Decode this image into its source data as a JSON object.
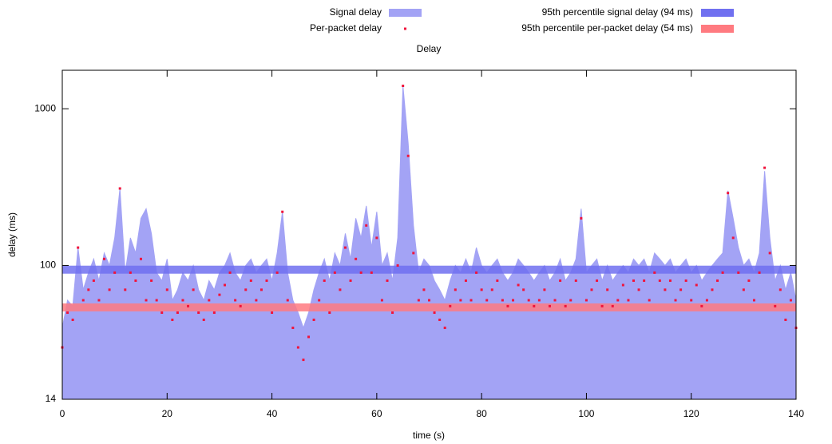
{
  "chart_data": {
    "type": "area-scatter",
    "title": "Delay",
    "x_label": "time (s)",
    "y_label": "delay (ms)",
    "log_y": true,
    "xlim": [
      0,
      140
    ],
    "xticks": [
      0,
      20,
      40,
      60,
      80,
      100,
      120,
      140
    ],
    "ylim": [
      14,
      1760
    ],
    "yticks": [
      14,
      100,
      1000
    ],
    "x": [
      0,
      1,
      2,
      3,
      4,
      5,
      6,
      7,
      8,
      9,
      10,
      11,
      12,
      13,
      14,
      15,
      16,
      17,
      18,
      19,
      20,
      21,
      22,
      23,
      24,
      25,
      26,
      27,
      28,
      29,
      30,
      31,
      32,
      33,
      34,
      35,
      36,
      37,
      38,
      39,
      40,
      41,
      42,
      43,
      44,
      45,
      46,
      47,
      48,
      49,
      50,
      51,
      52,
      53,
      54,
      55,
      56,
      57,
      58,
      59,
      60,
      61,
      62,
      63,
      64,
      65,
      66,
      67,
      68,
      69,
      70,
      71,
      72,
      73,
      74,
      75,
      76,
      77,
      78,
      79,
      80,
      81,
      82,
      83,
      84,
      85,
      86,
      87,
      88,
      89,
      90,
      91,
      92,
      93,
      94,
      95,
      96,
      97,
      98,
      99,
      100,
      101,
      102,
      103,
      104,
      105,
      106,
      107,
      108,
      109,
      110,
      111,
      112,
      113,
      114,
      115,
      116,
      117,
      118,
      119,
      120,
      121,
      122,
      123,
      124,
      125,
      126,
      127,
      128,
      129,
      130,
      131,
      132,
      133,
      134,
      135,
      136,
      137,
      138,
      139,
      140
    ],
    "series": [
      {
        "name": "Signal delay",
        "style": "area",
        "color": "#a3a3f5",
        "values": [
          40,
          60,
          55,
          130,
          70,
          90,
          110,
          80,
          120,
          100,
          150,
          310,
          90,
          150,
          120,
          200,
          230,
          160,
          90,
          80,
          110,
          60,
          70,
          90,
          80,
          100,
          70,
          60,
          80,
          70,
          90,
          100,
          120,
          90,
          80,
          100,
          110,
          90,
          100,
          110,
          80,
          120,
          220,
          90,
          60,
          50,
          40,
          50,
          70,
          90,
          110,
          80,
          120,
          100,
          160,
          110,
          200,
          150,
          240,
          130,
          220,
          100,
          120,
          80,
          150,
          1400,
          600,
          180,
          90,
          110,
          100,
          80,
          70,
          60,
          80,
          100,
          90,
          110,
          90,
          130,
          100,
          90,
          100,
          110,
          90,
          80,
          90,
          110,
          100,
          90,
          80,
          90,
          100,
          80,
          90,
          110,
          80,
          90,
          110,
          230,
          90,
          100,
          110,
          80,
          100,
          80,
          90,
          100,
          90,
          110,
          100,
          110,
          90,
          120,
          110,
          100,
          110,
          90,
          100,
          110,
          90,
          100,
          80,
          90,
          100,
          110,
          120,
          300,
          200,
          130,
          100,
          110,
          90,
          120,
          400,
          150,
          80,
          100,
          70,
          90,
          60
        ]
      },
      {
        "name": "Per-packet delay",
        "style": "dots",
        "color": "#f0143c",
        "values": [
          30,
          50,
          45,
          130,
          60,
          70,
          80,
          60,
          110,
          70,
          90,
          310,
          70,
          90,
          80,
          110,
          60,
          80,
          60,
          50,
          70,
          45,
          50,
          60,
          55,
          70,
          50,
          45,
          60,
          50,
          65,
          75,
          90,
          60,
          55,
          70,
          80,
          60,
          70,
          80,
          50,
          90,
          220,
          60,
          40,
          30,
          25,
          35,
          45,
          60,
          80,
          50,
          90,
          70,
          130,
          80,
          110,
          90,
          180,
          90,
          150,
          60,
          80,
          50,
          100,
          1400,
          500,
          120,
          60,
          70,
          60,
          50,
          45,
          40,
          55,
          70,
          60,
          80,
          60,
          90,
          70,
          60,
          70,
          80,
          60,
          55,
          60,
          75,
          70,
          60,
          55,
          60,
          70,
          55,
          60,
          80,
          55,
          60,
          80,
          200,
          60,
          70,
          80,
          55,
          70,
          55,
          60,
          75,
          60,
          80,
          70,
          80,
          60,
          90,
          80,
          70,
          80,
          60,
          70,
          80,
          60,
          75,
          55,
          60,
          70,
          80,
          90,
          290,
          150,
          90,
          70,
          80,
          60,
          90,
          420,
          120,
          55,
          70,
          45,
          60,
          40
        ]
      }
    ],
    "reference_lines": [
      {
        "name": "95th percentile signal delay (94 ms)",
        "value": 94,
        "color": "#7070f0"
      },
      {
        "name": "95th percentile per-packet delay (54 ms)",
        "value": 54,
        "color": "#ff7a80"
      }
    ]
  }
}
